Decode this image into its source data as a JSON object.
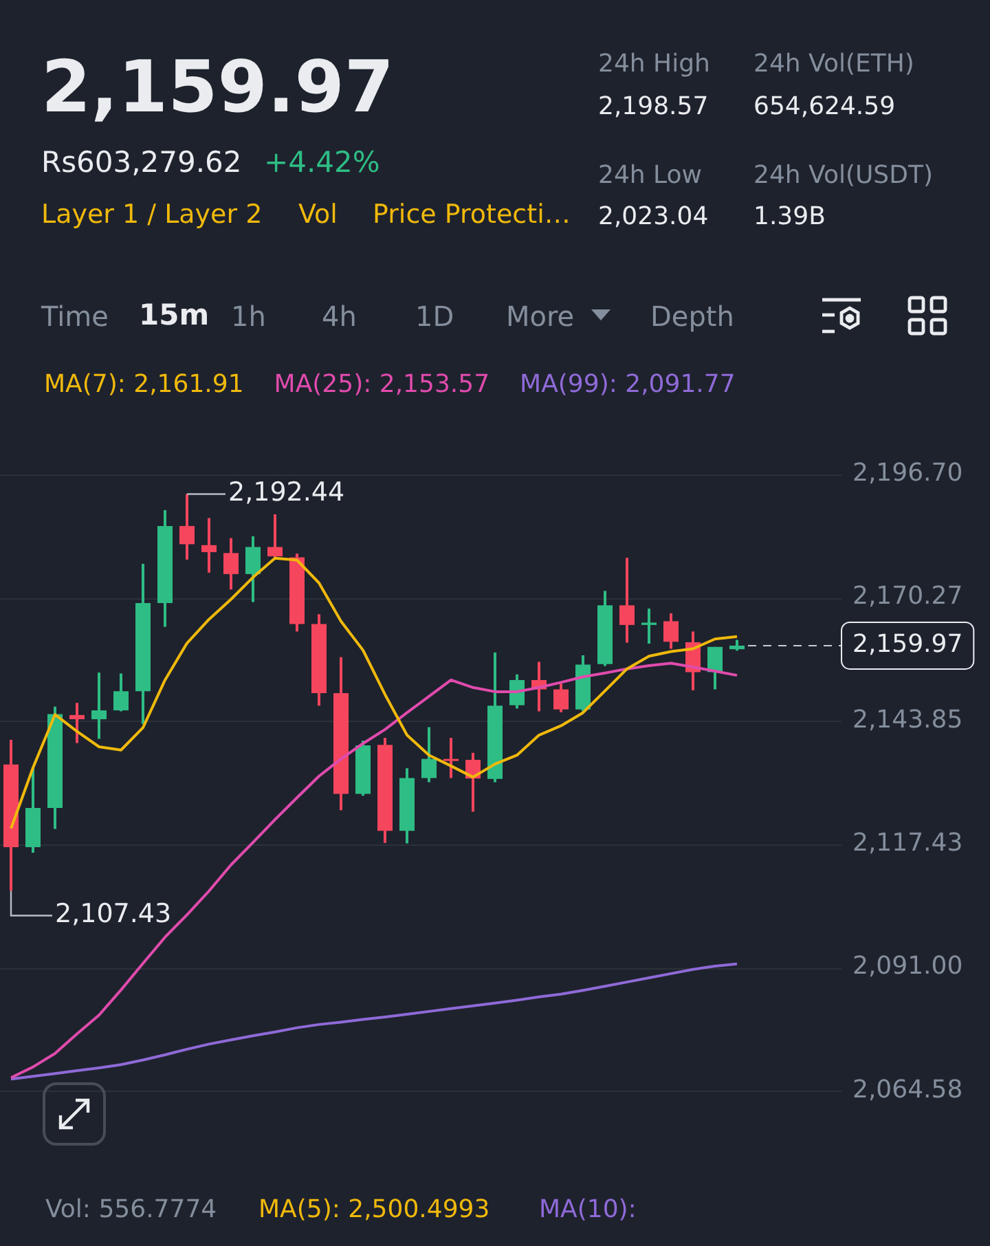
{
  "chart_data": {
    "type": "candlestick",
    "title": "2,159.97",
    "subtitle": "Rs603,279.62",
    "categories": [
      null,
      null,
      null,
      null,
      null,
      null,
      null,
      null,
      null,
      null,
      null,
      null,
      null,
      null,
      null,
      null,
      null,
      null,
      null,
      null,
      null,
      null,
      null,
      null,
      null,
      null,
      null,
      null,
      null,
      null,
      null,
      null,
      null,
      null
    ],
    "ohlc": [
      [
        2134.5,
        2139.8,
        2107.43,
        2116.8
      ],
      [
        2116.8,
        2134.0,
        2115.6,
        2125.2
      ],
      [
        2125.2,
        2146.9,
        2120.7,
        2145.3
      ],
      [
        2145.1,
        2147.7,
        2139.1,
        2144.2
      ],
      [
        2144.2,
        2154.2,
        2140.0,
        2146.1
      ],
      [
        2146.1,
        2154.0,
        2145.9,
        2150.2
      ],
      [
        2150.2,
        2177.5,
        2143.2,
        2169.1
      ],
      [
        2169.1,
        2189.0,
        2164.0,
        2185.6
      ],
      [
        2185.6,
        2192.44,
        2178.4,
        2181.7
      ],
      [
        2181.5,
        2187.3,
        2175.6,
        2180.0
      ],
      [
        2179.8,
        2183.0,
        2172.0,
        2175.3
      ],
      [
        2175.3,
        2183.4,
        2169.3,
        2181.1
      ],
      [
        2181.1,
        2188.1,
        2178.6,
        2179.1
      ],
      [
        2178.9,
        2179.7,
        2163.0,
        2164.6
      ],
      [
        2164.6,
        2166.7,
        2147.1,
        2149.8
      ],
      [
        2149.8,
        2157.5,
        2124.7,
        2128.2
      ],
      [
        2128.2,
        2139.6,
        2127.8,
        2138.6
      ],
      [
        2138.7,
        2140.2,
        2117.7,
        2120.3
      ],
      [
        2120.3,
        2133.7,
        2117.6,
        2131.6
      ],
      [
        2131.6,
        2142.5,
        2130.7,
        2135.7
      ],
      [
        2135.7,
        2140.2,
        2131.6,
        2135.4
      ],
      [
        2135.5,
        2137.0,
        2124.4,
        2131.5
      ],
      [
        2131.4,
        2158.5,
        2130.7,
        2147.1
      ],
      [
        2147.2,
        2153.8,
        2146.5,
        2152.6
      ],
      [
        2152.6,
        2156.5,
        2145.9,
        2150.6
      ],
      [
        2150.6,
        2151.8,
        2145.7,
        2146.3
      ],
      [
        2146.3,
        2157.9,
        2145.9,
        2155.9
      ],
      [
        2156.0,
        2171.7,
        2155.6,
        2168.6
      ],
      [
        2168.6,
        2178.8,
        2160.6,
        2164.4
      ],
      [
        2164.4,
        2167.9,
        2160.4,
        2164.9
      ],
      [
        2165.2,
        2166.9,
        2159.3,
        2160.8
      ],
      [
        2160.7,
        2163.0,
        2150.4,
        2154.3
      ],
      [
        2154.3,
        2159.7,
        2150.6,
        2159.7
      ],
      [
        2159.2,
        2161.2,
        2158.9,
        2159.97
      ]
    ],
    "colors": [
      "#f6465d",
      "#2ebd85",
      "#2ebd85",
      "#f6465d",
      "#2ebd85",
      "#2ebd85",
      "#2ebd85",
      "#2ebd85",
      "#f6465d",
      "#f6465d",
      "#f6465d",
      "#2ebd85",
      "#f6465d",
      "#f6465d",
      "#f6465d",
      "#f6465d",
      "#2ebd85",
      "#f6465d",
      "#2ebd85",
      "#2ebd85",
      "#f6465d",
      "#f6465d",
      "#2ebd85",
      "#2ebd85",
      "#f6465d",
      "#f6465d",
      "#2ebd85",
      "#2ebd85",
      "#f6465d",
      "#2ebd85",
      "#f6465d",
      "#f6465d",
      "#2ebd85",
      "#2ebd85"
    ],
    "series": [
      {
        "type": "line",
        "name": "MA(7): 2,161.91",
        "color": "#f0b90b",
        "values": [
          2120.8,
          2133.8,
          2145.2,
          2141.6,
          2138.3,
          2137.6,
          2142.4,
          2152.6,
          2160.5,
          2165.6,
          2169.9,
          2174.6,
          2178.7,
          2178.3,
          2173.4,
          2165.2,
          2159.0,
          2149.5,
          2140.8,
          2136.5,
          2134.2,
          2131.8,
          2134.6,
          2136.5,
          2140.8,
          2142.8,
          2145.6,
          2150.3,
          2155.0,
          2157.7,
          2158.7,
          2159.3,
          2161.4,
          2161.9
        ]
      },
      {
        "type": "line",
        "name": "MA(25): 2,153.57",
        "color": "#e04bac",
        "values": [
          2067.4,
          2069.7,
          2072.6,
          2076.8,
          2080.8,
          2086.2,
          2091.9,
          2097.5,
          2102.3,
          2107.4,
          2113.0,
          2117.8,
          2122.7,
          2127.4,
          2132.0,
          2135.7,
          2139.0,
          2142.0,
          2145.6,
          2149.1,
          2152.6,
          2151.0,
          2150.1,
          2150.1,
          2151.0,
          2152.1,
          2153.3,
          2154.1,
          2155.0,
          2155.7,
          2156.2,
          2155.4,
          2154.5,
          2153.6
        ]
      },
      {
        "type": "line",
        "name": "MA(99): 2,091.77",
        "color": "#8f6ad8",
        "values": [
          2067.1,
          2067.7,
          2068.3,
          2068.9,
          2069.5,
          2070.2,
          2071.2,
          2072.3,
          2073.5,
          2074.6,
          2075.5,
          2076.4,
          2077.2,
          2078.1,
          2078.8,
          2079.3,
          2079.9,
          2080.4,
          2081.0,
          2081.6,
          2082.2,
          2082.8,
          2083.4,
          2084.0,
          2084.7,
          2085.3,
          2086.1,
          2087.0,
          2087.9,
          2088.8,
          2089.7,
          2090.6,
          2091.3,
          2091.8
        ]
      }
    ],
    "ylim": [
      2064.58,
      2196.7
    ],
    "yticks": [
      {
        "value": 2064.58,
        "label": "2,064.58"
      },
      {
        "value": 2091.0,
        "label": "2,091.00"
      },
      {
        "value": 2117.43,
        "label": "2,117.43"
      },
      {
        "value": 2143.85,
        "label": "2,143.85"
      },
      {
        "value": 2170.27,
        "label": "2,170.27"
      },
      {
        "value": 2196.7,
        "label": "2,196.70"
      }
    ],
    "ref_lines": [
      {
        "axis": "y",
        "value": 2159.97,
        "label": "2,159.97",
        "line_style": "dashed",
        "color": "#c8ccd2"
      }
    ],
    "annotations": [
      "+4.42%",
      "Layer 1 / Layer 2",
      "Vol",
      "Price Protecti…",
      "24h High",
      "2,198.57",
      "24h Vol(ETH)",
      "654,624.59",
      "24h Low",
      "2,023.04",
      "24h Vol(USDT)",
      "1.39B",
      "Time",
      "15m",
      "1h",
      "4h",
      "1D",
      "More",
      "Depth",
      "Vol: 556.7774",
      "MA(5): 2,500.4993",
      "MA(10):",
      "2,192.44",
      "2,107.43"
    ],
    "grid": "y",
    "legend": "top",
    "marker": "none",
    "line_style": "solid",
    "tick_labels": "y"
  }
}
